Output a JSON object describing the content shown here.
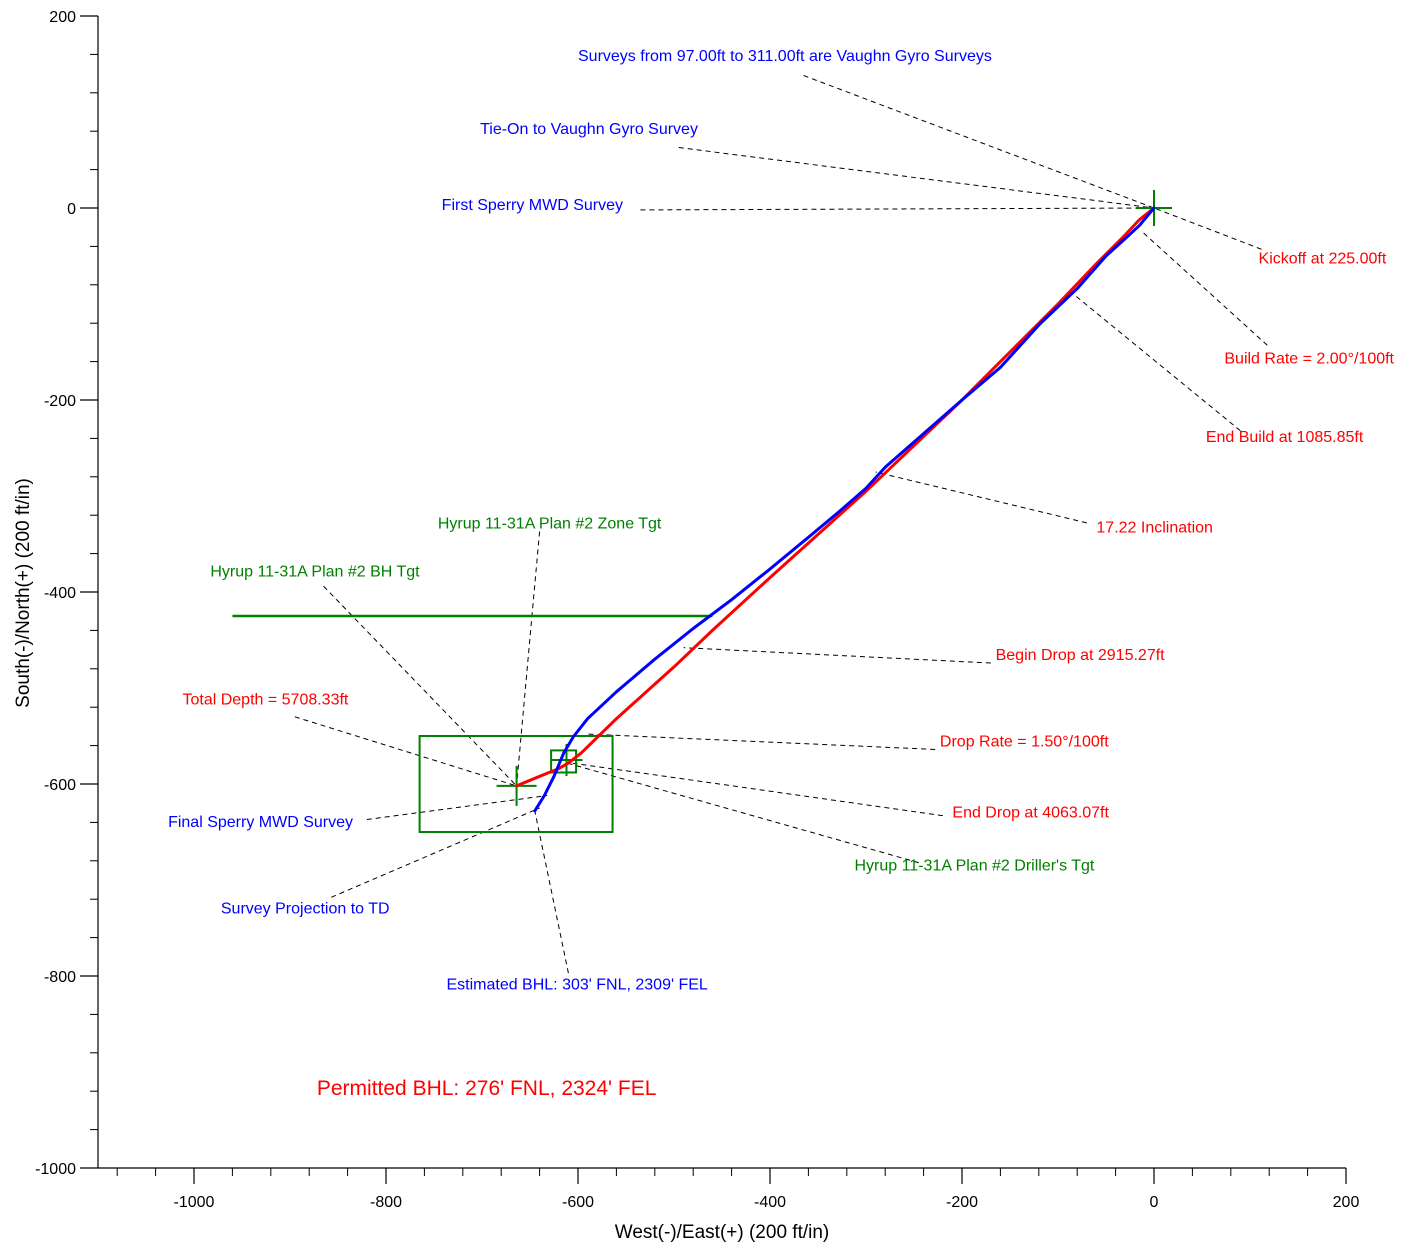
{
  "chart_data": {
    "type": "line",
    "title": "",
    "xlabel": "West(-)/East(+) (200 ft/in)",
    "ylabel": "South(-)/North(+) (200 ft/in)",
    "xlim": [
      -1100,
      200
    ],
    "ylim": [
      -1000,
      200
    ],
    "x_ticks": [
      -1000,
      -800,
      -600,
      -400,
      -200,
      0,
      200
    ],
    "y_ticks": [
      200,
      0,
      -200,
      -400,
      -600,
      -800,
      -1000
    ],
    "x_minor_step": 40,
    "y_minor_step": 40,
    "grid": false,
    "colors": {
      "plan": "#ff0000",
      "actual": "#0000ff",
      "target": "#008000",
      "leader": "#000000"
    },
    "series": [
      {
        "name": "",
        "color": "#ff0000",
        "x": [
          0,
          -15,
          -30,
          -60,
          -100,
          -200,
          -300,
          -400,
          -460,
          -500,
          -560,
          -597,
          -610,
          -620,
          -640,
          -664
        ],
        "y": [
          0,
          -12,
          -28,
          -58,
          -100,
          -200,
          -295,
          -385,
          -440,
          -478,
          -532,
          -568,
          -578,
          -584,
          -592,
          -602
        ]
      },
      {
        "name": "",
        "color": "#0000ff",
        "x": [
          0,
          -15,
          -30,
          -50,
          -80,
          -120,
          -160,
          -200,
          -240,
          -280,
          -300,
          -330,
          -360,
          -400,
          -440,
          -480,
          -520,
          -560,
          -590,
          -605,
          -615,
          -625,
          -635,
          -645
        ],
        "y": [
          0,
          -18,
          -32,
          -50,
          -84,
          -122,
          -166,
          -200,
          -235,
          -270,
          -292,
          -318,
          -343,
          -376,
          -408,
          -438,
          -470,
          -504,
          -532,
          -551,
          -568,
          -592,
          -612,
          -628
        ]
      }
    ],
    "target_line": {
      "x": [
        -960,
        -460
      ],
      "y": [
        -425,
        -425
      ]
    },
    "zone_target_rect": {
      "x": [
        -765,
        -564
      ],
      "y": [
        -550,
        -650
      ]
    },
    "drillers_target_rect": {
      "x": [
        -628,
        -602
      ],
      "y": [
        -565,
        -588
      ]
    },
    "markers": [
      {
        "name": "kickoff-cross",
        "x": 0,
        "y": 0,
        "half": 18
      },
      {
        "name": "drillers-tgt-cross",
        "x": -612,
        "y": -575,
        "half": 16
      },
      {
        "name": "bh-tgt-cross",
        "x": -664,
        "y": -602,
        "half": 20
      }
    ],
    "annotations": [
      {
        "id": "surveys-gyro",
        "text": "Surveys from 97.00ft to 311.00ft are Vaughn Gyro Surveys",
        "color": "#0000ff",
        "x": -600,
        "y": 153,
        "anchor": "start",
        "from": [
          -365,
          138
        ],
        "to": [
          0,
          0
        ]
      },
      {
        "id": "tie-on",
        "text": "Tie-On to Vaughn Gyro Survey",
        "color": "#0000ff",
        "x": -702,
        "y": 77,
        "anchor": "start",
        "from": [
          -495,
          63
        ],
        "to": [
          0,
          0
        ]
      },
      {
        "id": "first-sperry",
        "text": "First Sperry MWD Survey",
        "color": "#0000ff",
        "x": -742,
        "y": -2,
        "anchor": "start",
        "from": [
          -535,
          -2
        ],
        "to": [
          0,
          0
        ]
      },
      {
        "id": "kickoff",
        "text": "Kickoff at 225.00ft",
        "color": "#ff0000",
        "x": 242,
        "y": -58,
        "anchor": "end",
        "from": [
          112,
          -43
        ],
        "to": [
          0,
          0
        ]
      },
      {
        "id": "build-rate",
        "text": "Build Rate = 2.00°/100ft",
        "color": "#ff0000",
        "x": 250,
        "y": -162,
        "anchor": "end",
        "from": [
          118,
          -143
        ],
        "to": [
          -12,
          -25
        ]
      },
      {
        "id": "end-build",
        "text": "End Build at 1085.85ft",
        "color": "#ff0000",
        "x": 218,
        "y": -244,
        "anchor": "end",
        "from": [
          90,
          -232
        ],
        "to": [
          -86,
          -88
        ]
      },
      {
        "id": "inclination",
        "text": "17.22 Inclination",
        "color": "#ff0000",
        "x": -60,
        "y": -338,
        "anchor": "start",
        "from": [
          -70,
          -328
        ],
        "to": [
          -290,
          -275
        ]
      },
      {
        "id": "begin-drop",
        "text": "Begin Drop at 2915.27ft",
        "color": "#ff0000",
        "x": -165,
        "y": -471,
        "anchor": "start",
        "from": [
          -170,
          -474
        ],
        "to": [
          -490,
          -458
        ]
      },
      {
        "id": "drop-rate",
        "text": "Drop Rate = 1.50°/100ft",
        "color": "#ff0000",
        "x": -223,
        "y": -561,
        "anchor": "start",
        "from": [
          -228,
          -564
        ],
        "to": [
          -590,
          -548
        ]
      },
      {
        "id": "end-drop",
        "text": "End Drop at 4063.07ft",
        "color": "#ff0000",
        "x": -210,
        "y": -635,
        "anchor": "start",
        "from": [
          -220,
          -633
        ],
        "to": [
          -608,
          -578
        ]
      },
      {
        "id": "drillers-tgt",
        "text": "Hyrup 11-31A Plan #2 Driller's Tgt",
        "color": "#008000",
        "x": -312,
        "y": -690,
        "anchor": "start",
        "from": [
          -245,
          -682
        ],
        "to": [
          -612,
          -578
        ]
      },
      {
        "id": "zone-tgt",
        "text": "Hyrup 11-31A Plan #2 Zone Tgt",
        "color": "#008000",
        "x": -746,
        "y": -334,
        "anchor": "start",
        "from": [
          -640,
          -337
        ],
        "to": [
          -664,
          -602
        ]
      },
      {
        "id": "bh-tgt",
        "text": "Hyrup 11-31A Plan #2 BH Tgt",
        "color": "#008000",
        "x": -983,
        "y": -384,
        "anchor": "start",
        "from": [
          -865,
          -394
        ],
        "to": [
          -664,
          -602
        ]
      },
      {
        "id": "total-depth",
        "text": "Total Depth = 5708.33ft",
        "color": "#ff0000",
        "x": -1012,
        "y": -517,
        "anchor": "start",
        "from": [
          -895,
          -530
        ],
        "to": [
          -664,
          -602
        ]
      },
      {
        "id": "final-sperry",
        "text": "Final Sperry MWD Survey",
        "color": "#0000ff",
        "x": -1027,
        "y": -645,
        "anchor": "start",
        "from": [
          -820,
          -637
        ],
        "to": [
          -632,
          -612
        ]
      },
      {
        "id": "survey-projection",
        "text": "Survey Projection to TD",
        "color": "#0000ff",
        "x": -972,
        "y": -735,
        "anchor": "start",
        "from": [
          -857,
          -718
        ],
        "to": [
          -640,
          -625
        ]
      },
      {
        "id": "estimated-bhl",
        "text": "Estimated BHL:  303' FNL, 2309' FEL",
        "color": "#0000ff",
        "x": -737,
        "y": -814,
        "anchor": "start",
        "from": [
          -610,
          -797
        ],
        "to": [
          -645,
          -628
        ]
      }
    ],
    "big_annotations": [
      {
        "id": "permitted-bhl",
        "text": "Permitted BHL:  276' FNL, 2324' FEL",
        "color": "#ff0000",
        "x": -872,
        "y": -924,
        "anchor": "start"
      }
    ]
  }
}
